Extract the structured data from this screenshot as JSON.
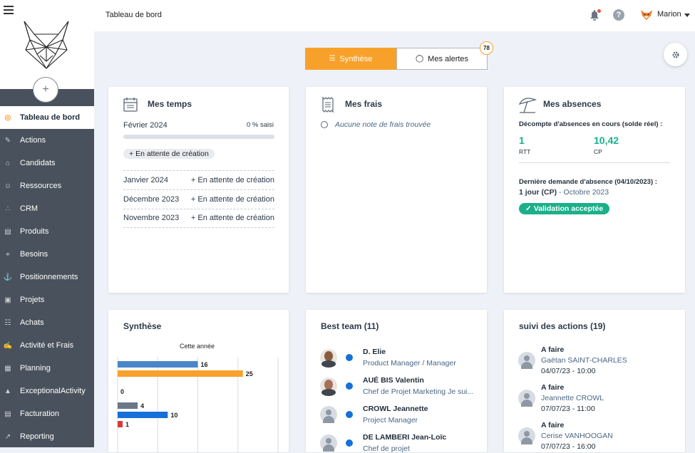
{
  "topbar": {
    "title": "Tableau de bord",
    "user": "Marion"
  },
  "sidebar": {
    "items": [
      {
        "label": "Tableau de bord",
        "icon": "dashboard-icon",
        "active": true
      },
      {
        "label": "Actions",
        "icon": "actions-icon"
      },
      {
        "label": "Candidats",
        "icon": "graduation-cap-icon"
      },
      {
        "label": "Ressources",
        "icon": "people-icon"
      },
      {
        "label": "CRM",
        "icon": "crm-icon"
      },
      {
        "label": "Produits",
        "icon": "products-icon"
      },
      {
        "label": "Besoins",
        "icon": "target-icon"
      },
      {
        "label": "Positionnements",
        "icon": "pin-icon"
      },
      {
        "label": "Projets",
        "icon": "briefcase-icon"
      },
      {
        "label": "Achats",
        "icon": "cart-icon"
      },
      {
        "label": "Activité et Frais",
        "icon": "edit-icon"
      },
      {
        "label": "Planning",
        "icon": "calendar-icon"
      },
      {
        "label": "ExceptionalActivity",
        "icon": "exceptional-icon"
      },
      {
        "label": "Facturation",
        "icon": "invoice-icon"
      },
      {
        "label": "Reporting",
        "icon": "chart-icon"
      }
    ]
  },
  "tabs": {
    "synthese": "Synthèse",
    "alertes": "Mes alertes",
    "alert_count": "78"
  },
  "mes_temps": {
    "title": "Mes temps",
    "current_month": "Février 2024",
    "current_pct": "0 % saisi",
    "current_progress": 0,
    "current_status": "En attente de création",
    "rows": [
      {
        "month": "Janvier 2024",
        "status": "En attente de création"
      },
      {
        "month": "Décembre 2023",
        "status": "En attente de création"
      },
      {
        "month": "Novembre 2023",
        "status": "En attente de création"
      }
    ]
  },
  "mes_frais": {
    "title": "Mes frais",
    "empty": "Aucune note de frais trouvée"
  },
  "mes_absences": {
    "title": "Mes absences",
    "count_label": "Décompte d'absences en cours (solde réel) :",
    "rtt_value": "1",
    "rtt_label": "RTT",
    "cp_value": "10,42",
    "cp_label": "CP",
    "last_request_label": "Dernière demande d'absence (04/10/2023) :",
    "last_request_value": "1 jour (CP)",
    "last_request_period": "- Octobre 2023",
    "status": "Validation acceptée"
  },
  "synthese": {
    "title": "Synthèse"
  },
  "chart_data": {
    "type": "bar",
    "orientation": "horizontal",
    "title": "Cette année",
    "groups": [
      {
        "bars": [
          {
            "value": 16,
            "color": "#4a86c8"
          },
          {
            "value": 25,
            "color": "#f8a12a"
          },
          {
            "value": 0,
            "color": "#f8c26a"
          }
        ]
      },
      {
        "bars": [
          {
            "value": 4,
            "color": "#6a7889"
          },
          {
            "value": 10,
            "color": "#1670d8"
          },
          {
            "value": 1,
            "color": "#d83a3a"
          }
        ]
      }
    ],
    "labels": [
      "16",
      "25",
      "0",
      "4",
      "10",
      "1"
    ],
    "xlim": [
      0,
      32
    ],
    "grid": true
  },
  "best_team": {
    "title": "Best team (11)",
    "members": [
      {
        "name": "D. Elie",
        "role": "Product Manager / Manager"
      },
      {
        "name": "AUÉ BIS Valentin",
        "role": "Chef de Projet Marketing Je sui..."
      },
      {
        "name": "CROWL Jeannette",
        "role": "Project Manager"
      },
      {
        "name": "DE LAMBERI Jean-Loïc",
        "role": "Chef de projet"
      }
    ]
  },
  "suivi": {
    "title": "suivi des actions (19)",
    "items": [
      {
        "type": "A faire",
        "name": "Gaëtan SAINT-CHARLES",
        "date": "04/07/23 - 10:00"
      },
      {
        "type": "A faire",
        "name": "Jeannette CROWL",
        "date": "07/07/23 - 11:00"
      },
      {
        "type": "A faire",
        "name": "Cerise VANHOOGAN",
        "date": "07/07/23 - 16:00"
      }
    ]
  }
}
